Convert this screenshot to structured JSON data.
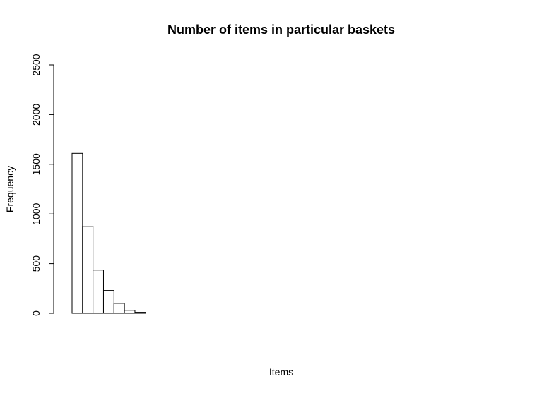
{
  "chart_data": {
    "type": "bar",
    "title": "Number of items in particular baskets",
    "xlabel": "Items",
    "ylabel": "Frequency",
    "ylim": [
      0,
      2500
    ],
    "yticks": [
      "0",
      "500",
      "1000",
      "1500",
      "2000",
      "2500"
    ],
    "values": [
      1610,
      875,
      435,
      230,
      100,
      30,
      10,
      0,
      0,
      0,
      0,
      0,
      0,
      0,
      0,
      0,
      0,
      0,
      0,
      0,
      0,
      0,
      0,
      0,
      0,
      0,
      0,
      0,
      0,
      0,
      0,
      0,
      0,
      0,
      0,
      0,
      0,
      0,
      0,
      0
    ],
    "grid": false,
    "legend": "none",
    "bar_fill": "#ffffff",
    "bar_stroke": "#000000"
  }
}
